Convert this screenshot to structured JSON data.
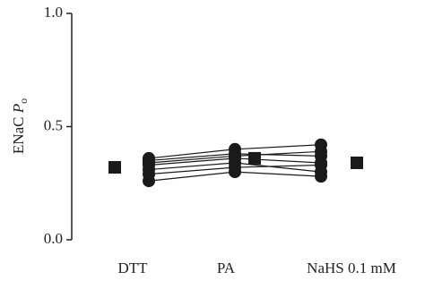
{
  "chart_data": {
    "type": "paired-dot",
    "ylabel": "ENaC",
    "ylabel_symbol": "P",
    "ylabel_subscript": "o",
    "categories": [
      "DTT",
      "PA",
      "NaHS 0.1 mM"
    ],
    "series": [
      {
        "values": [
          0.36,
          0.4,
          0.42
        ]
      },
      {
        "values": [
          0.35,
          0.38,
          0.37
        ]
      },
      {
        "values": [
          0.34,
          0.37,
          0.39
        ]
      },
      {
        "values": [
          0.33,
          0.36,
          0.34
        ]
      },
      {
        "values": [
          0.31,
          0.34,
          0.3
        ]
      },
      {
        "values": [
          0.29,
          0.32,
          0.33
        ]
      },
      {
        "values": [
          0.26,
          0.3,
          0.28
        ]
      }
    ],
    "mean_values": [
      0.32,
      0.36,
      0.34
    ],
    "color": "#1a1a1a",
    "ylim": [
      0,
      1.0
    ],
    "yticks": [
      {
        "value": 0,
        "label": "0.0"
      },
      {
        "value": 0.5,
        "label": "0.5"
      },
      {
        "value": 1.0,
        "label": "1.0"
      }
    ]
  }
}
